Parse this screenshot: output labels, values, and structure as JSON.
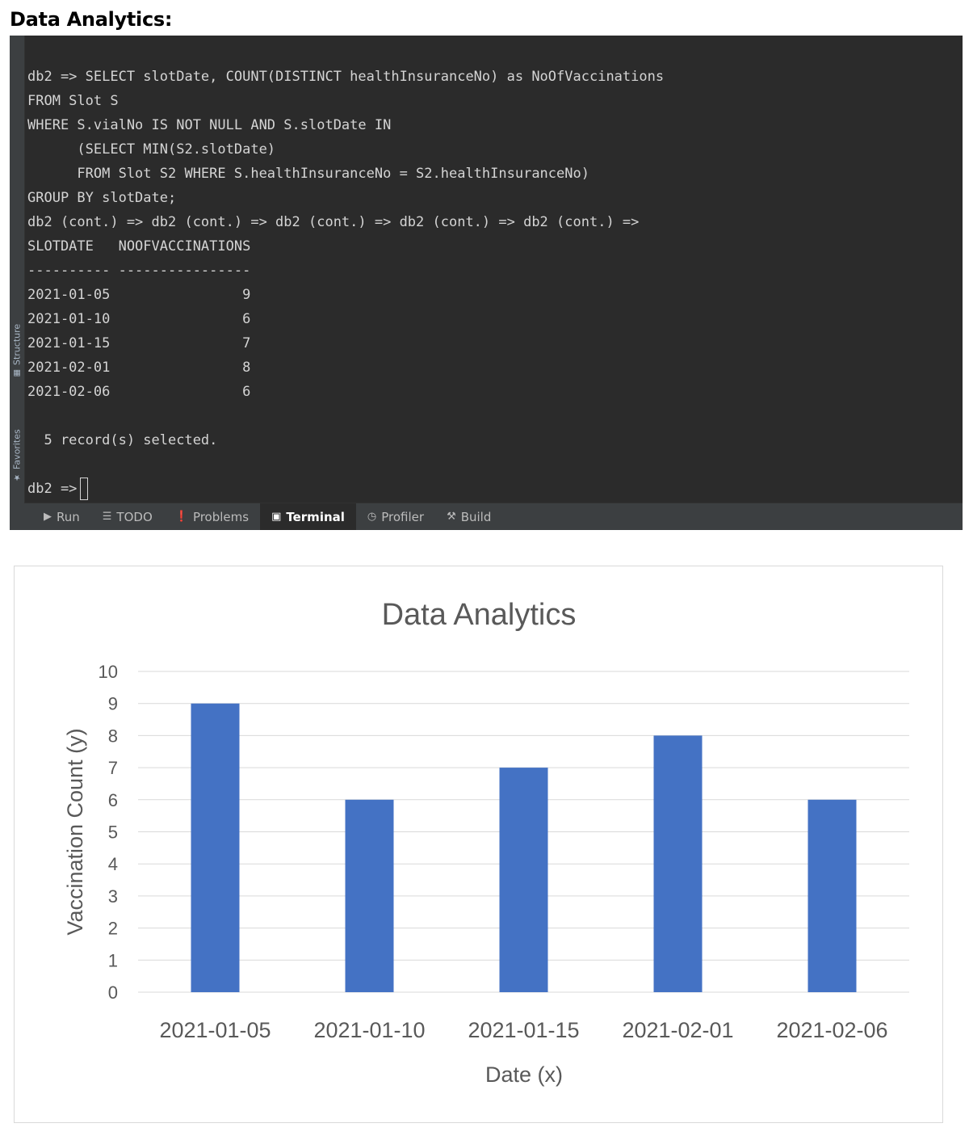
{
  "heading": "Data Analytics:",
  "sidebar": {
    "structure_label": "Structure",
    "favorites_label": "Favorites"
  },
  "terminal": {
    "lines": [
      "db2 => SELECT slotDate, COUNT(DISTINCT healthInsuranceNo) as NoOfVaccinations",
      "FROM Slot S",
      "WHERE S.vialNo IS NOT NULL AND S.slotDate IN",
      "      (SELECT MIN(S2.slotDate)",
      "      FROM Slot S2 WHERE S.healthInsuranceNo = S2.healthInsuranceNo)",
      "GROUP BY slotDate;",
      "db2 (cont.) => db2 (cont.) => db2 (cont.) => db2 (cont.) => db2 (cont.) =>",
      "SLOTDATE   NOOFVACCINATIONS",
      "---------- ----------------",
      "2021-01-05                9",
      "2021-01-10                6",
      "2021-01-15                7",
      "2021-02-01                8",
      "2021-02-06                6",
      "",
      "  5 record(s) selected.",
      "",
      "db2 =>"
    ]
  },
  "tabs": [
    {
      "label": "Run",
      "icon": "run-icon",
      "active": false
    },
    {
      "label": "TODO",
      "icon": "todo-icon",
      "active": false
    },
    {
      "label": "Problems",
      "icon": "problems-icon",
      "active": false
    },
    {
      "label": "Terminal",
      "icon": "terminal-icon",
      "active": true
    },
    {
      "label": "Profiler",
      "icon": "profiler-icon",
      "active": false
    },
    {
      "label": "Build",
      "icon": "build-icon",
      "active": false
    }
  ],
  "chart_data": {
    "type": "bar",
    "title": "Data Analytics",
    "xlabel": "Date (x)",
    "ylabel": "Vaccination Count (y)",
    "categories": [
      "2021-01-05",
      "2021-01-10",
      "2021-01-15",
      "2021-02-01",
      "2021-02-06"
    ],
    "values": [
      9,
      6,
      7,
      8,
      6
    ],
    "ylim": [
      0,
      10
    ],
    "yticks": [
      0,
      1,
      2,
      3,
      4,
      5,
      6,
      7,
      8,
      9,
      10
    ],
    "grid": true,
    "bar_color": "#4472c4",
    "grid_color": "#d9d9d9"
  }
}
